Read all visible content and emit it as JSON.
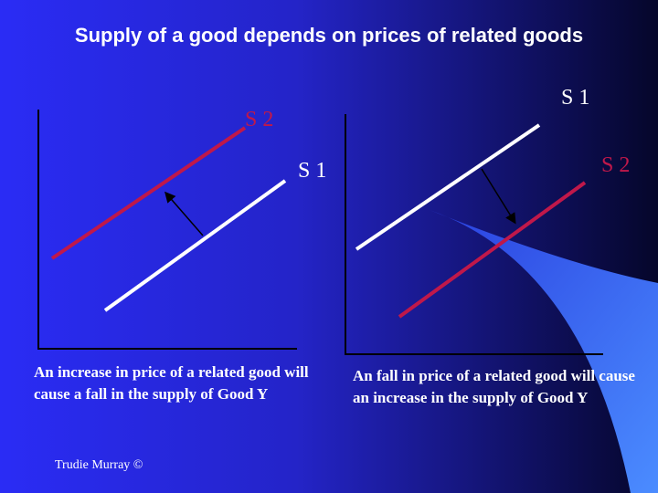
{
  "title": "Supply of a good depends on prices of related goods",
  "left_panel": {
    "labels": [
      "S 2",
      "S 1"
    ],
    "caption": "An increase in price of a related good will cause a fall in the supply of Good Y"
  },
  "right_panel": {
    "labels": [
      "S 1",
      "S 2"
    ],
    "caption": "An fall in price of a related good will cause an increase in the supply of Good Y"
  },
  "footer": "Trudie Murray ©"
}
